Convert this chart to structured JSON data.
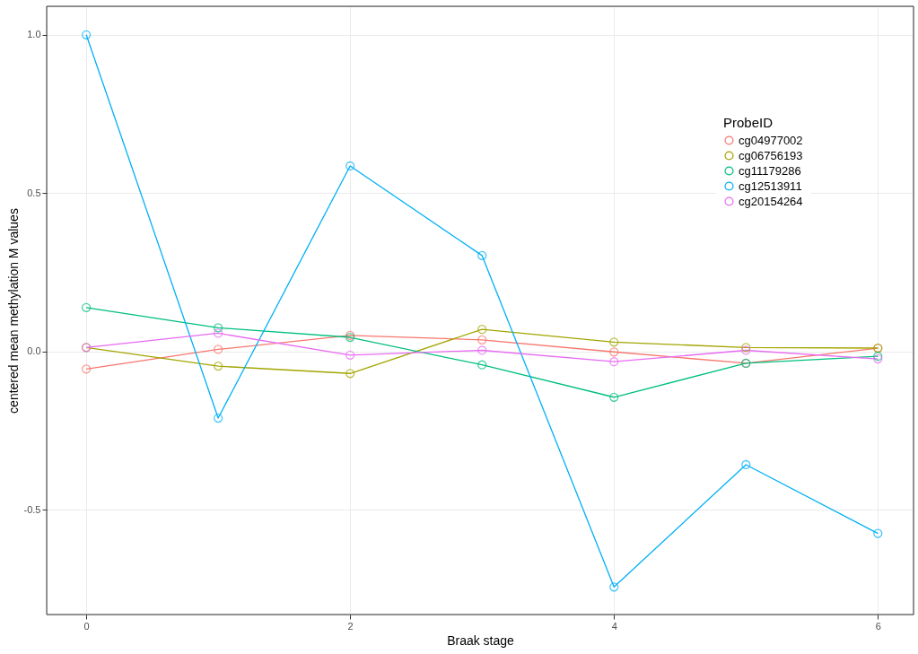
{
  "chart_data": {
    "type": "line",
    "xlabel": "Braak stage",
    "ylabel": "centered mean methylation M values",
    "legend_title": "ProbeID",
    "x": [
      0,
      1,
      2,
      3,
      4,
      5,
      6
    ],
    "series": [
      {
        "name": "cg04977002",
        "color": "#f8766d",
        "values": [
          -0.055,
          0.007,
          0.051,
          0.037,
          -0.001,
          -0.037,
          0.011
        ]
      },
      {
        "name": "cg06756193",
        "color": "#a3a500",
        "values": [
          0.013,
          -0.046,
          -0.069,
          0.07,
          0.03,
          0.013,
          0.011
        ]
      },
      {
        "name": "cg11179286",
        "color": "#00bf7d",
        "values": [
          0.139,
          0.075,
          0.045,
          -0.042,
          -0.144,
          -0.037,
          -0.015
        ]
      },
      {
        "name": "cg12513911",
        "color": "#00b0f6",
        "values": [
          1.0,
          -0.21,
          0.586,
          0.303,
          -0.743,
          -0.357,
          -0.574
        ]
      },
      {
        "name": "cg20154264",
        "color": "#e76bf3",
        "values": [
          0.013,
          0.058,
          -0.011,
          0.004,
          -0.032,
          0.004,
          -0.023
        ]
      }
    ],
    "xlim": [
      -0.3,
      6.27
    ],
    "ylim": [
      -0.83,
      1.09
    ],
    "xticks": [
      0,
      2,
      4,
      6
    ],
    "yticks": [
      {
        "value": -0.5,
        "label": "-0.5"
      },
      {
        "value": 0,
        "label": "0.0"
      },
      {
        "value": 0.5,
        "label": "0.5"
      },
      {
        "value": 1,
        "label": "1.0"
      }
    ],
    "grid": true,
    "legend": "top right",
    "marker": "circle",
    "line_style": "solid"
  }
}
